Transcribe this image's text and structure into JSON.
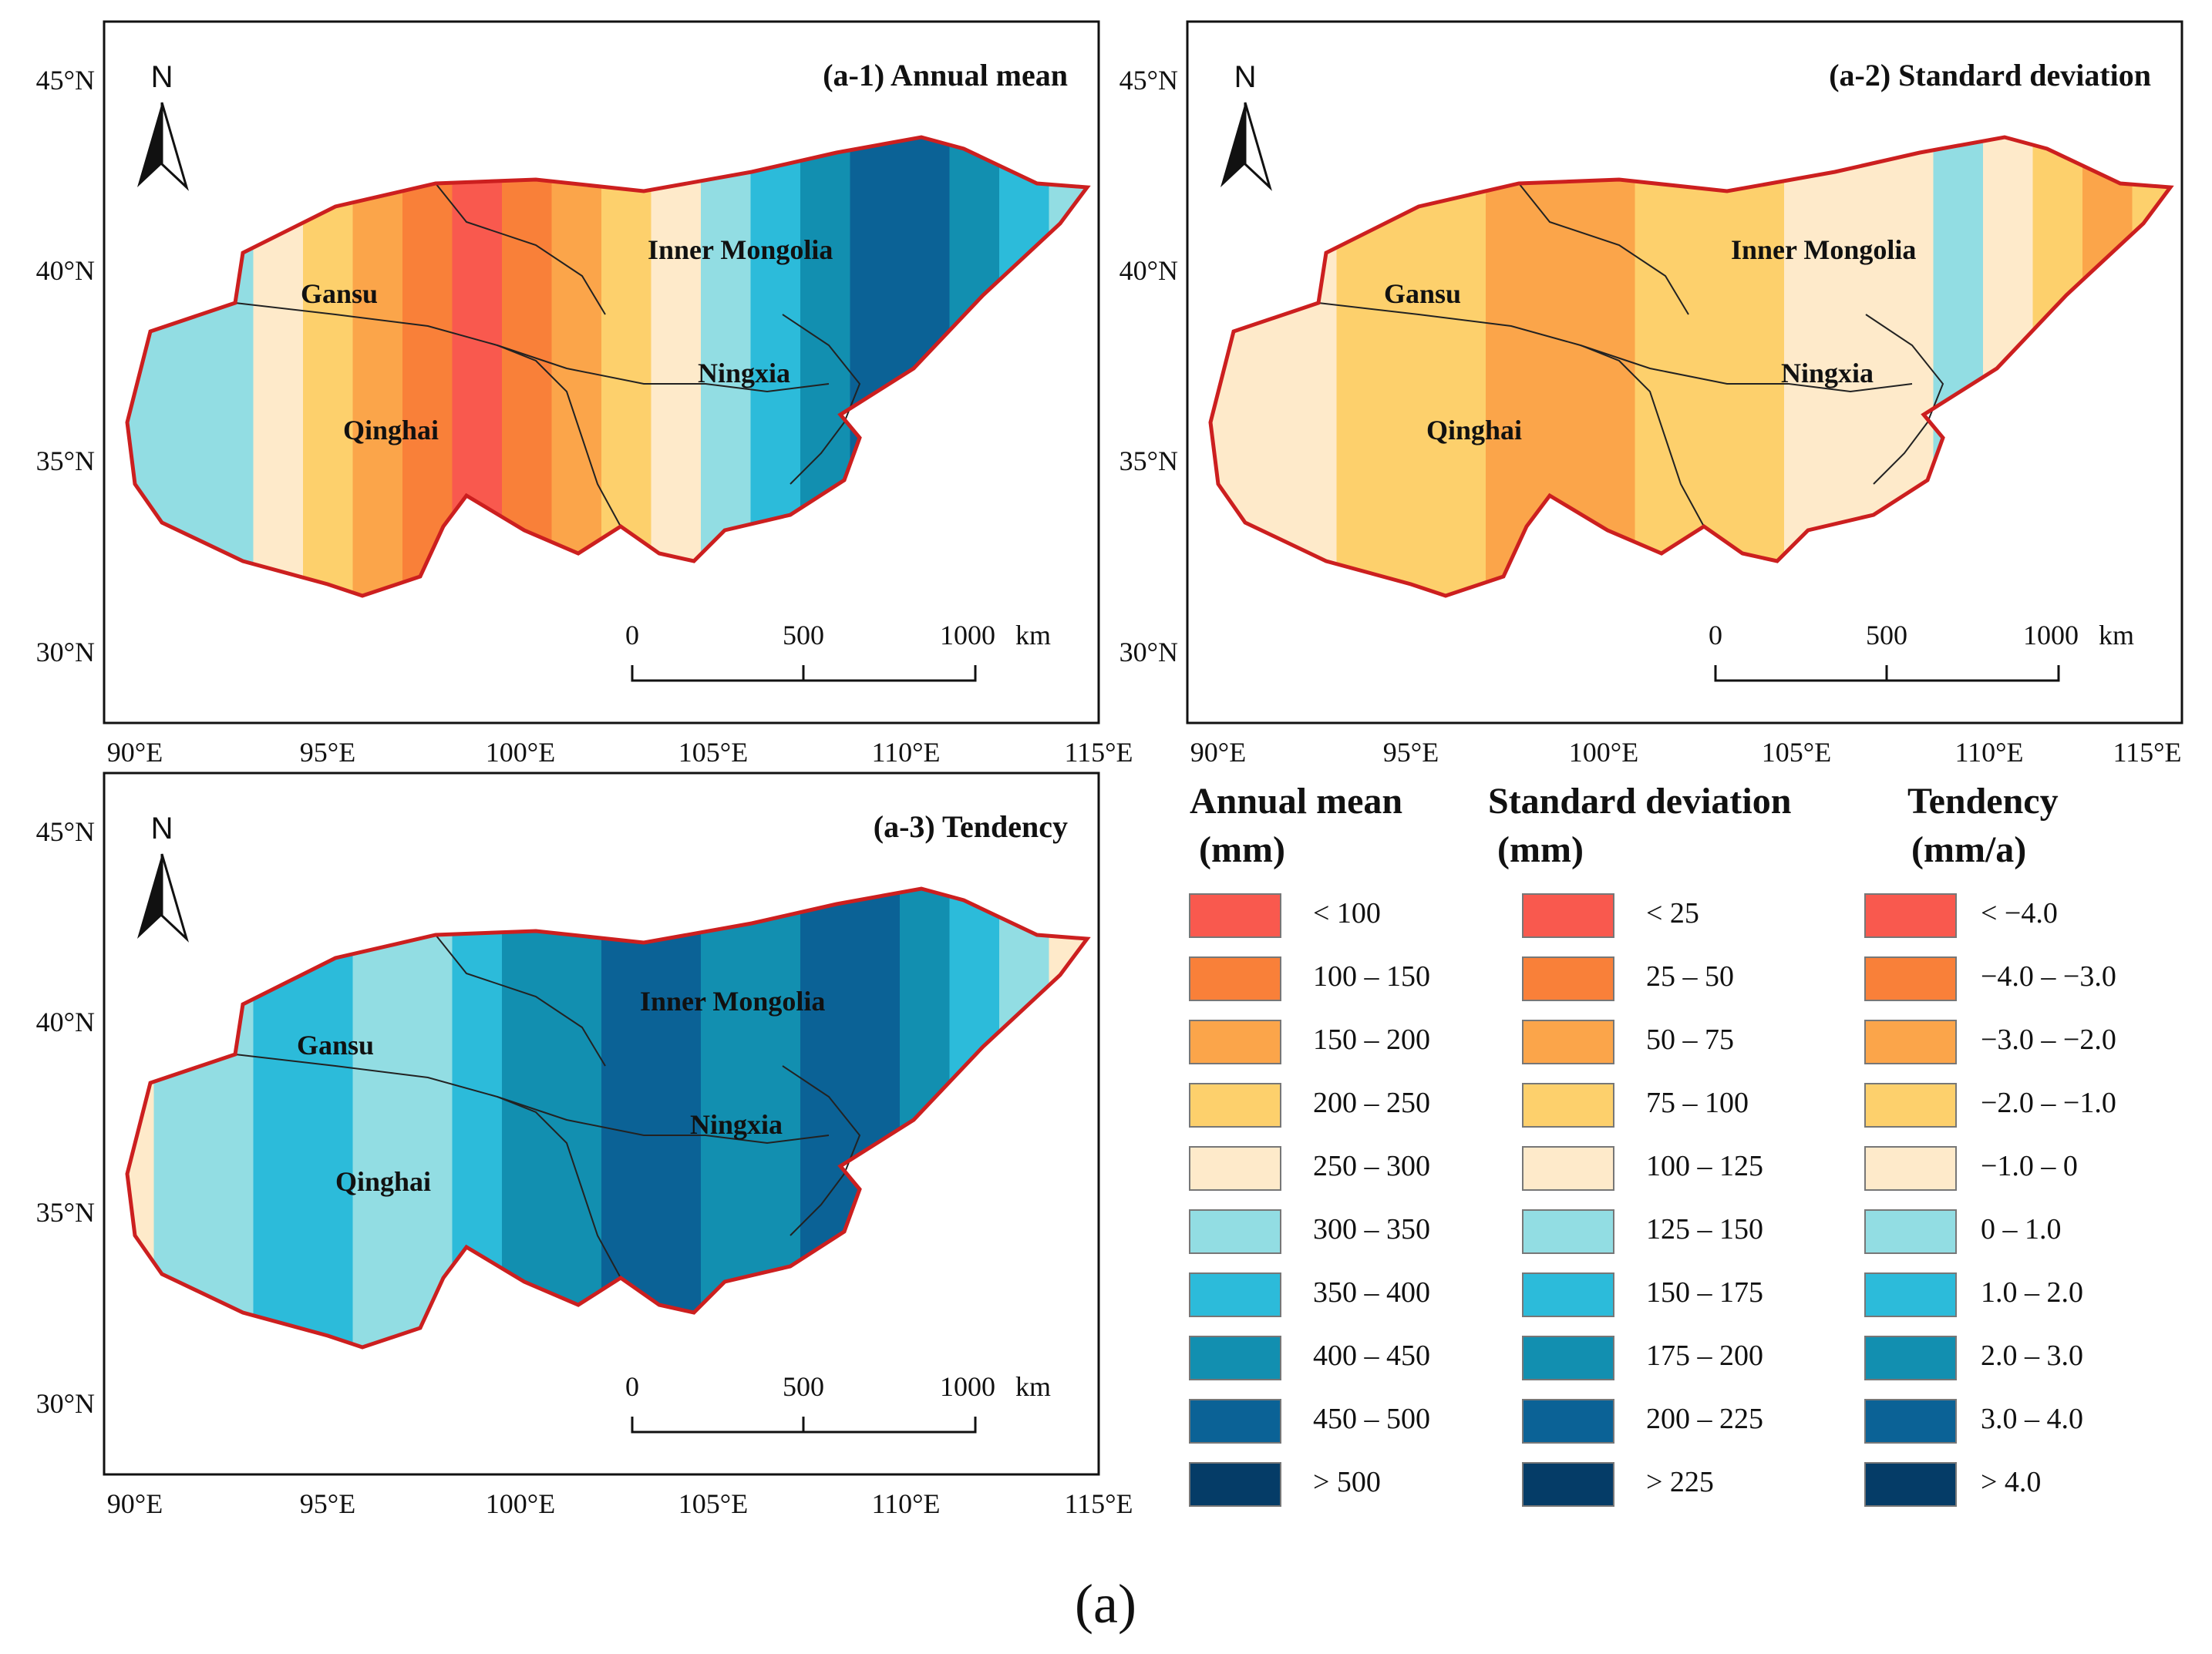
{
  "panels": [
    {
      "id": "a1",
      "title": "(a-1)  Annual mean",
      "scheme": [
        6,
        6,
        6,
        5,
        4,
        3,
        2,
        1,
        2,
        3,
        4,
        5,
        6,
        7,
        8,
        9,
        9,
        8,
        7,
        6
      ]
    },
    {
      "id": "a2",
      "title": "(a-2)  Standard deviation",
      "scheme": [
        5,
        5,
        5,
        4,
        4,
        4,
        3,
        3,
        3,
        4,
        4,
        4,
        5,
        5,
        5,
        6,
        5,
        4,
        3,
        4
      ]
    },
    {
      "id": "a3",
      "title": "(a-3)  Tendency",
      "scheme": [
        5,
        6,
        6,
        7,
        7,
        6,
        6,
        7,
        8,
        8,
        9,
        9,
        8,
        8,
        9,
        9,
        8,
        7,
        6,
        5
      ]
    }
  ],
  "regions": {
    "inner_mongolia": "Inner Mongolia",
    "gansu": "Gansu",
    "ningxia": "Ningxia",
    "qinghai": "Qinghai"
  },
  "lat_ticks": [
    "45°N",
    "40°N",
    "35°N",
    "30°N"
  ],
  "lon_ticks": [
    "90°E",
    "95°E",
    "100°E",
    "105°E",
    "110°E",
    "115°E"
  ],
  "north_label": "N",
  "scale_bar": {
    "labels": [
      "0",
      "500",
      "1000"
    ],
    "unit": "km"
  },
  "legend": {
    "colors": [
      "#f9594e",
      "#f98039",
      "#fba54a",
      "#fdd06c",
      "#feeaca",
      "#92dde3",
      "#2cbbda",
      "#128fb0",
      "#0b6296",
      "#053c67"
    ],
    "columns": [
      {
        "head1": "Annual mean",
        "head2": "(mm)",
        "classes": [
          "< 100",
          "100 – 150",
          "150 – 200",
          "200 – 250",
          "250 – 300",
          "300 – 350",
          "350 – 400",
          "400 – 450",
          "450 – 500",
          "> 500"
        ]
      },
      {
        "head1": "Standard deviation",
        "head2": "(mm)",
        "classes": [
          "< 25",
          "25 – 50",
          "50 – 75",
          "75 – 100",
          "100 – 125",
          "125 – 150",
          "150 – 175",
          "175 – 200",
          "200 – 225",
          "> 225"
        ]
      },
      {
        "head1": "Tendency",
        "head2": "(mm/a)",
        "classes": [
          "< −4.0",
          "−4.0 – −3.0",
          "−3.0 – −2.0",
          "−2.0 – −1.0",
          "−1.0 – 0",
          "0 – 1.0",
          "1.0 – 2.0",
          "2.0 – 3.0",
          "3.0 – 4.0",
          "> 4.0"
        ]
      }
    ]
  },
  "caption": "(a)",
  "outline_color": "#cc1f1f"
}
